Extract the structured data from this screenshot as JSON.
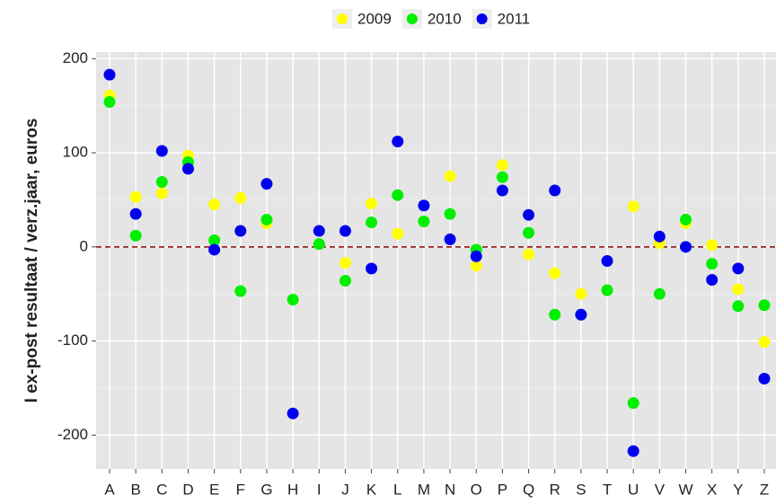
{
  "chart_data": {
    "type": "scatter",
    "ylabel": "I ex-post resultaat / verz.jaar, euros",
    "categories": [
      "A",
      "B",
      "C",
      "D",
      "E",
      "F",
      "G",
      "H",
      "I",
      "J",
      "K",
      "L",
      "M",
      "N",
      "O",
      "P",
      "Q",
      "R",
      "S",
      "T",
      "U",
      "V",
      "W",
      "X",
      "Y",
      "Z"
    ],
    "series": [
      {
        "name": "2009",
        "color": "#ffff00",
        "values": [
          161,
          53,
          57,
          97,
          45,
          52,
          25,
          -56,
          3,
          -17,
          46,
          14,
          27,
          75,
          -20,
          87,
          -8,
          -28,
          -50,
          -46,
          43,
          4,
          25,
          2,
          -45,
          -101
        ]
      },
      {
        "name": "2010",
        "color": "#00ee00",
        "values": [
          154,
          12,
          69,
          90,
          7,
          -47,
          29,
          -56,
          3,
          -36,
          26,
          55,
          27,
          35,
          -3,
          74,
          15,
          -72,
          -72,
          -46,
          -166,
          -50,
          29,
          -18,
          -63,
          -62
        ]
      },
      {
        "name": "2011",
        "color": "#0000ee",
        "values": [
          183,
          35,
          102,
          83,
          -3,
          17,
          67,
          -177,
          17,
          17,
          -23,
          112,
          44,
          8,
          -10,
          60,
          34,
          60,
          -72,
          -15,
          -217,
          11,
          0,
          -35,
          -23,
          -140
        ]
      }
    ],
    "ylim": [
      -236,
      207
    ],
    "yticks": [
      -200,
      -100,
      0,
      100,
      200
    ],
    "reference_line": 0,
    "reference_color": "#8b0000",
    "grid": true,
    "legend": "top"
  }
}
